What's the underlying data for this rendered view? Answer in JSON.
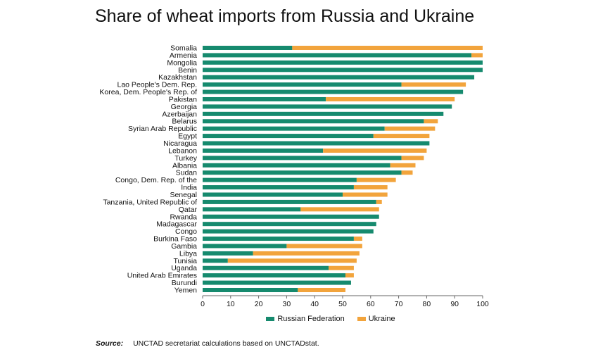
{
  "page_title": "Share of wheat imports from Russia and Ukraine",
  "legend": [
    {
      "name": "Russian Federation",
      "color": "#168a6e"
    },
    {
      "name": "Ukraine",
      "color": "#f2a43c"
    }
  ],
  "source": {
    "label": "Source:",
    "text": "UNCTAD secretariat calculations based on UNCTADstat."
  },
  "chart_data": {
    "type": "bar",
    "orientation": "horizontal",
    "stacked": true,
    "categories": [
      "Somalia",
      "Armenia",
      "Mongolia",
      "Benin",
      "Kazakhstan",
      "Lao People's Dem. Rep.",
      "Korea, Dem. People's Rep. of",
      "Pakistan",
      "Georgia",
      "Azerbaijan",
      "Belarus",
      "Syrian Arab Republic",
      "Egypt",
      "Nicaragua",
      "Lebanon",
      "Turkey",
      "Albania",
      "Sudan",
      "Congo, Dem. Rep. of the",
      "India",
      "Senegal",
      "Tanzania, United Republic of",
      "Qatar",
      "Rwanda",
      "Madagascar",
      "Congo",
      "Burkina Faso",
      "Gambia",
      "Libya",
      "Tunisia",
      "Uganda",
      "United Arab Emirates",
      "Burundi",
      "Yemen"
    ],
    "series": [
      {
        "name": "Russian Federation",
        "values": [
          32,
          96,
          100,
          100,
          97,
          71,
          93,
          44,
          89,
          86,
          79,
          65,
          61,
          81,
          43,
          71,
          67,
          71,
          55,
          54,
          50,
          62,
          35,
          63,
          62,
          61,
          54,
          30,
          18,
          9,
          45,
          51,
          53,
          34
        ]
      },
      {
        "name": "Ukraine",
        "values": [
          68,
          4,
          0,
          0,
          0,
          23,
          0,
          46,
          0,
          0,
          5,
          18,
          20,
          0,
          37,
          8,
          9,
          4,
          14,
          12,
          16,
          2,
          28,
          0,
          0,
          0,
          3,
          27,
          38,
          46,
          9,
          3,
          0,
          17
        ]
      }
    ],
    "xlim": [
      0,
      100
    ],
    "xticks": [
      "0",
      "10",
      "20",
      "30",
      "40",
      "50",
      "60",
      "70",
      "80",
      "90",
      "100"
    ],
    "grid": false,
    "legend_position": "bottom"
  }
}
